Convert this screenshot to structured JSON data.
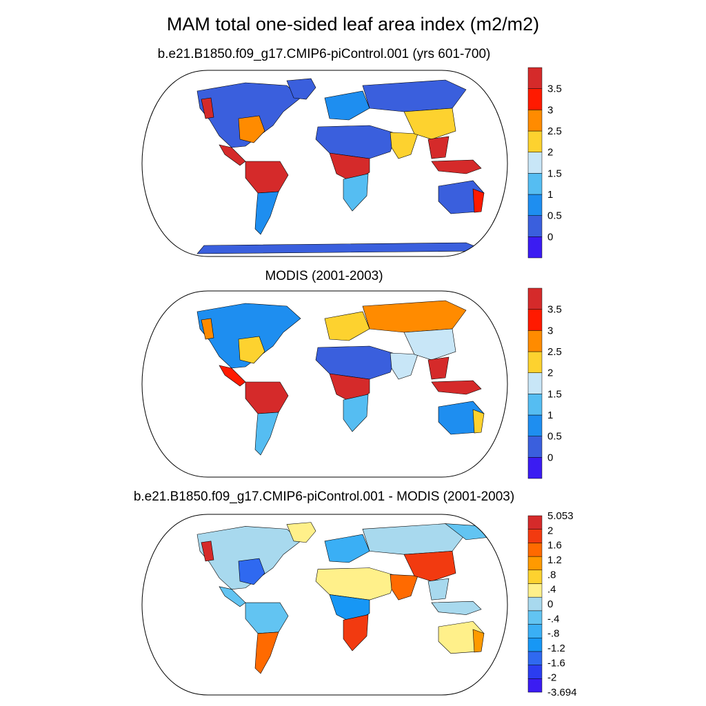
{
  "title": "MAM total one-sided leaf area index (m2/m2)",
  "colors": {
    "ocean": "#ffffff",
    "coast": "#000000",
    "lai_scale": [
      "#3b1cf2",
      "#3a5fdd",
      "#1e8ef0",
      "#55bdf2",
      "#c8e6f7",
      "#fdd22f",
      "#ff8b00",
      "#ff1a00",
      "#d52a2a"
    ],
    "diff_scale": [
      "#3b1cf2",
      "#2b3df0",
      "#2f69f0",
      "#1797f5",
      "#3aaff5",
      "#62c4f2",
      "#a8d9ee",
      "#fff08a",
      "#fdd22f",
      "#ff9a00",
      "#ff6a00",
      "#f23a10",
      "#d52a2a"
    ]
  },
  "chart_data": [
    {
      "type": "heatmap",
      "subtitle": "b.e21.B1850.f09_g17.CMIP6-piControl.001 (yrs 601-700)",
      "projection": "Robinson",
      "colorbar_labels": [
        "3.5",
        "3",
        "2.5",
        "2",
        "1.5",
        "1",
        "0.5",
        "0"
      ],
      "colorbar_levels": [
        0,
        0.5,
        1,
        1.5,
        2,
        2.5,
        3,
        3.5
      ],
      "regions": [
        {
          "name": "North America",
          "level": 1
        },
        {
          "name": "Eastern North America",
          "level": 6
        },
        {
          "name": "Pacific Northwest",
          "level": 8
        },
        {
          "name": "Central America",
          "level": 8
        },
        {
          "name": "Amazonia",
          "level": 8
        },
        {
          "name": "South America (south)",
          "level": 2
        },
        {
          "name": "Greenland",
          "level": 1
        },
        {
          "name": "Europe",
          "level": 2
        },
        {
          "name": "Siberia",
          "level": 1
        },
        {
          "name": "Sahara / Arabia",
          "level": 1
        },
        {
          "name": "Central Africa",
          "level": 8
        },
        {
          "name": "Southern Africa",
          "level": 3
        },
        {
          "name": "South Asia",
          "level": 5
        },
        {
          "name": "East Asia",
          "level": 5
        },
        {
          "name": "Southeast Asia",
          "level": 8
        },
        {
          "name": "Maritime Continent",
          "level": 8
        },
        {
          "name": "Australia",
          "level": 1
        },
        {
          "name": "Eastern Australia",
          "level": 7
        },
        {
          "name": "Antarctica",
          "level": 1
        }
      ]
    },
    {
      "type": "heatmap",
      "subtitle": "MODIS (2001-2003)",
      "projection": "Robinson",
      "colorbar_labels": [
        "3.5",
        "3",
        "2.5",
        "2",
        "1.5",
        "1",
        "0.5",
        "0"
      ],
      "colorbar_levels": [
        0,
        0.5,
        1,
        1.5,
        2,
        2.5,
        3,
        3.5
      ],
      "regions": [
        {
          "name": "North America",
          "level": 2
        },
        {
          "name": "Eastern North America",
          "level": 5
        },
        {
          "name": "Pacific Northwest",
          "level": 6
        },
        {
          "name": "Central America",
          "level": 7
        },
        {
          "name": "Amazonia",
          "level": 8
        },
        {
          "name": "South America (south)",
          "level": 3
        },
        {
          "name": "Europe",
          "level": 5
        },
        {
          "name": "Siberia",
          "level": 6
        },
        {
          "name": "Sahara / Arabia",
          "level": 1
        },
        {
          "name": "Central Africa",
          "level": 8
        },
        {
          "name": "Southern Africa",
          "level": 3
        },
        {
          "name": "South Asia",
          "level": 4
        },
        {
          "name": "East Asia",
          "level": 4
        },
        {
          "name": "Southeast Asia",
          "level": 8
        },
        {
          "name": "Maritime Continent",
          "level": 8
        },
        {
          "name": "Australia",
          "level": 2
        },
        {
          "name": "Eastern Australia",
          "level": 5
        }
      ]
    },
    {
      "type": "heatmap",
      "subtitle": "b.e21.B1850.f09_g17.CMIP6-piControl.001 - MODIS (2001-2003)",
      "projection": "Robinson",
      "colorbar_labels": [
        "5.053",
        "2",
        "1.6",
        "1.2",
        ".8",
        ".4",
        "0",
        "-.4",
        "-.8",
        "-1.2",
        "-1.6",
        "-2",
        "-3.694"
      ],
      "colorbar_levels": [
        -2,
        -1.6,
        -1.2,
        -0.8,
        -0.4,
        0,
        0.4,
        0.8,
        1.2,
        1.6,
        2
      ],
      "colorbar_range": [
        -3.694,
        5.053
      ],
      "regions": [
        {
          "name": "North America",
          "level": 6
        },
        {
          "name": "Eastern North America",
          "level": 2
        },
        {
          "name": "Pacific Northwest",
          "level": 12
        },
        {
          "name": "Central America",
          "level": 5
        },
        {
          "name": "Amazonia",
          "level": 5
        },
        {
          "name": "South America (south)",
          "level": 10
        },
        {
          "name": "Greenland",
          "level": 7
        },
        {
          "name": "Europe",
          "level": 4
        },
        {
          "name": "Siberia",
          "level": 6
        },
        {
          "name": "Sahara / Arabia",
          "level": 7
        },
        {
          "name": "Central Africa",
          "level": 3
        },
        {
          "name": "Southern Africa",
          "level": 11
        },
        {
          "name": "South Asia",
          "level": 10
        },
        {
          "name": "East Asia",
          "level": 11
        },
        {
          "name": "Southeast Asia",
          "level": 6
        },
        {
          "name": "Maritime Continent",
          "level": 6
        },
        {
          "name": "Australia",
          "level": 7
        },
        {
          "name": "Eastern Australia",
          "level": 9
        },
        {
          "name": "Siberia (east)",
          "level": 5
        }
      ]
    }
  ]
}
